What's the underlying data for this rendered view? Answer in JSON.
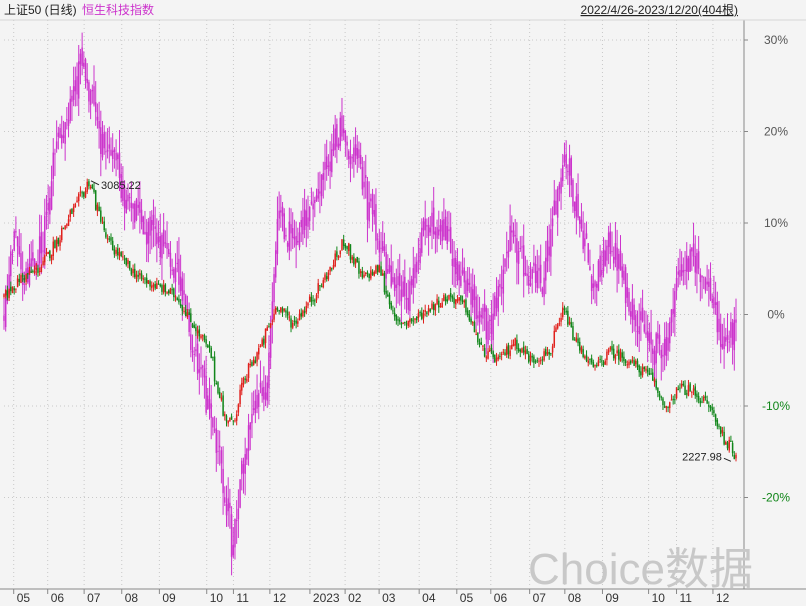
{
  "header": {
    "main_series": "上证50 (日线)",
    "compare_series": "恒生科技指数",
    "range_info": "2022/4/26-2023/12/20(404根)"
  },
  "watermark": "Choice数据",
  "colors": {
    "background": "#f4f4f4",
    "grid": "#c8c8c8",
    "up": "#e0201c",
    "down": "#11861a",
    "compare": "#cc33cc",
    "text": "#222222",
    "negative_axis": "#11861a",
    "watermark": "#c8c8c8"
  },
  "chart_data": {
    "type": "line",
    "title": "",
    "xlabel": "",
    "ylabel": "",
    "ylim": [
      -0.3,
      0.3
    ],
    "grid": true,
    "y_ticks": [
      {
        "value": 0.3,
        "label": "30%"
      },
      {
        "value": 0.2,
        "label": "20%"
      },
      {
        "value": 0.1,
        "label": "10%"
      },
      {
        "value": 0.0,
        "label": "0%"
      },
      {
        "value": -0.1,
        "label": "-10%"
      },
      {
        "value": -0.2,
        "label": "-20%"
      }
    ],
    "x_ticks": [
      {
        "value": "2022-05-04",
        "label": "05"
      },
      {
        "value": "2022-06-01",
        "label": "06"
      },
      {
        "value": "2022-07-01",
        "label": "07"
      },
      {
        "value": "2022-08-01",
        "label": "08"
      },
      {
        "value": "2022-09-01",
        "label": "09"
      },
      {
        "value": "2022-10-10",
        "label": "10"
      },
      {
        "value": "2022-11-01",
        "label": "11"
      },
      {
        "value": "2022-12-01",
        "label": "12"
      },
      {
        "value": "2023-01-03",
        "label": "2023"
      },
      {
        "value": "2023-02-01",
        "label": "02"
      },
      {
        "value": "2023-03-01",
        "label": "03"
      },
      {
        "value": "2023-04-03",
        "label": "04"
      },
      {
        "value": "2023-05-04",
        "label": "05"
      },
      {
        "value": "2023-06-01",
        "label": "06"
      },
      {
        "value": "2023-07-03",
        "label": "07"
      },
      {
        "value": "2023-08-01",
        "label": "08"
      },
      {
        "value": "2023-09-01",
        "label": "09"
      },
      {
        "value": "2023-10-09",
        "label": "10"
      },
      {
        "value": "2023-11-01",
        "label": "11"
      },
      {
        "value": "2023-12-01",
        "label": "12"
      }
    ],
    "annotations": [
      {
        "date": "2022-07-05",
        "value": 0.145,
        "label": "3085.22"
      },
      {
        "date": "2023-12-15",
        "value": -0.155,
        "label": "2227.98"
      }
    ],
    "series": [
      {
        "name": "上证50",
        "points": [
          [
            "2022-04-26",
            0.02
          ],
          [
            "2022-05-10",
            0.04
          ],
          [
            "2022-05-25",
            0.05
          ],
          [
            "2022-06-08",
            0.08
          ],
          [
            "2022-06-20",
            0.11
          ],
          [
            "2022-07-05",
            0.145
          ],
          [
            "2022-07-20",
            0.08
          ],
          [
            "2022-08-01",
            0.06
          ],
          [
            "2022-08-15",
            0.04
          ],
          [
            "2022-08-31",
            0.03
          ],
          [
            "2022-09-15",
            0.02
          ],
          [
            "2022-09-28",
            -0.01
          ],
          [
            "2022-10-12",
            -0.04
          ],
          [
            "2022-10-24",
            -0.11
          ],
          [
            "2022-10-31",
            -0.12
          ],
          [
            "2022-11-10",
            -0.07
          ],
          [
            "2022-11-25",
            -0.03
          ],
          [
            "2022-12-07",
            0.01
          ],
          [
            "2022-12-20",
            -0.01
          ],
          [
            "2023-01-06",
            0.02
          ],
          [
            "2023-01-20",
            0.05
          ],
          [
            "2023-01-31",
            0.08
          ],
          [
            "2023-02-15",
            0.04
          ],
          [
            "2023-03-01",
            0.05
          ],
          [
            "2023-03-15",
            -0.01
          ],
          [
            "2023-03-31",
            -0.005
          ],
          [
            "2023-04-14",
            0.01
          ],
          [
            "2023-04-28",
            0.02
          ],
          [
            "2023-05-10",
            0.01
          ],
          [
            "2023-05-25",
            -0.04
          ],
          [
            "2023-06-08",
            -0.05
          ],
          [
            "2023-06-20",
            -0.03
          ],
          [
            "2023-07-05",
            -0.05
          ],
          [
            "2023-07-20",
            -0.04
          ],
          [
            "2023-07-31",
            0.005
          ],
          [
            "2023-08-10",
            -0.03
          ],
          [
            "2023-08-25",
            -0.06
          ],
          [
            "2023-09-08",
            -0.04
          ],
          [
            "2023-09-22",
            -0.05
          ],
          [
            "2023-10-12",
            -0.07
          ],
          [
            "2023-10-24",
            -0.105
          ],
          [
            "2023-11-03",
            -0.08
          ],
          [
            "2023-11-15",
            -0.085
          ],
          [
            "2023-11-28",
            -0.1
          ],
          [
            "2023-12-08",
            -0.13
          ],
          [
            "2023-12-20",
            -0.155
          ]
        ]
      },
      {
        "name": "恒生科技指数",
        "points": [
          [
            "2022-04-26",
            0.0
          ],
          [
            "2022-05-05",
            0.1
          ],
          [
            "2022-05-12",
            0.03
          ],
          [
            "2022-05-25",
            0.07
          ],
          [
            "2022-06-02",
            0.12
          ],
          [
            "2022-06-10",
            0.2
          ],
          [
            "2022-06-20",
            0.22
          ],
          [
            "2022-06-28",
            0.27
          ],
          [
            "2022-07-05",
            0.25
          ],
          [
            "2022-07-15",
            0.18
          ],
          [
            "2022-07-28",
            0.16
          ],
          [
            "2022-08-05",
            0.12
          ],
          [
            "2022-08-18",
            0.1
          ],
          [
            "2022-08-31",
            0.08
          ],
          [
            "2022-09-08",
            0.06
          ],
          [
            "2022-09-20",
            0.03
          ],
          [
            "2022-09-30",
            -0.05
          ],
          [
            "2022-10-12",
            -0.1
          ],
          [
            "2022-10-20",
            -0.15
          ],
          [
            "2022-10-31",
            -0.25
          ],
          [
            "2022-11-08",
            -0.17
          ],
          [
            "2022-11-18",
            -0.09
          ],
          [
            "2022-11-28",
            -0.08
          ],
          [
            "2022-12-07",
            0.1
          ],
          [
            "2022-12-20",
            0.08
          ],
          [
            "2023-01-06",
            0.13
          ],
          [
            "2023-01-18",
            0.16
          ],
          [
            "2023-01-27",
            0.2
          ],
          [
            "2023-02-10",
            0.17
          ],
          [
            "2023-02-24",
            0.1
          ],
          [
            "2023-03-10",
            0.04
          ],
          [
            "2023-03-24",
            0.02
          ],
          [
            "2023-04-06",
            0.09
          ],
          [
            "2023-04-20",
            0.1
          ],
          [
            "2023-05-05",
            0.05
          ],
          [
            "2023-05-19",
            0.01
          ],
          [
            "2023-05-31",
            -0.02
          ],
          [
            "2023-06-16",
            0.08
          ],
          [
            "2023-06-30",
            0.05
          ],
          [
            "2023-07-14",
            0.03
          ],
          [
            "2023-07-31",
            0.18
          ],
          [
            "2023-08-14",
            0.1
          ],
          [
            "2023-08-25",
            0.03
          ],
          [
            "2023-09-08",
            0.08
          ],
          [
            "2023-09-22",
            0.02
          ],
          [
            "2023-10-12",
            -0.04
          ],
          [
            "2023-10-24",
            -0.03
          ],
          [
            "2023-11-03",
            0.05
          ],
          [
            "2023-11-17",
            0.06
          ],
          [
            "2023-11-28",
            0.03
          ],
          [
            "2023-12-08",
            -0.03
          ],
          [
            "2023-12-20",
            -0.02
          ]
        ]
      }
    ]
  }
}
